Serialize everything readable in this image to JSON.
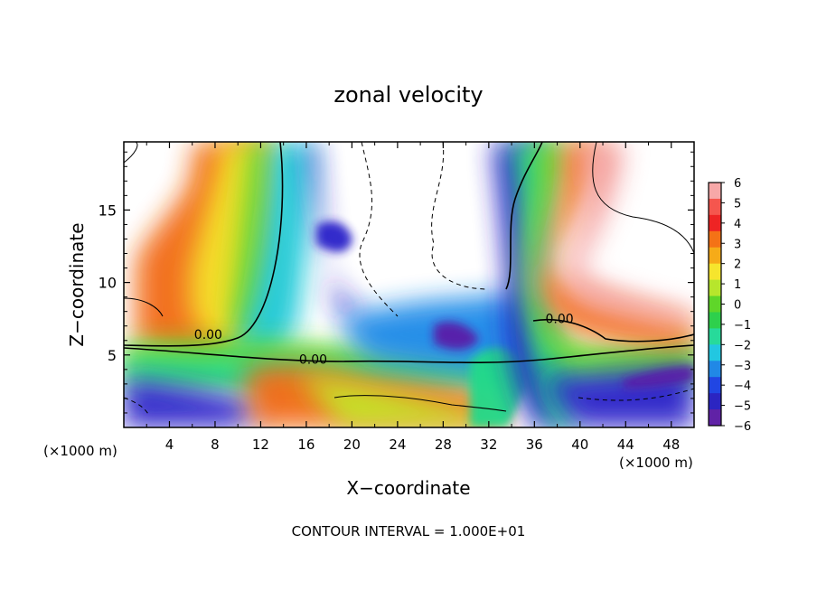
{
  "chart_data": {
    "type": "heatmap",
    "title": "zonal velocity",
    "xlabel": "X−coordinate",
    "ylabel": "Z−coordinate",
    "x_unit_left": "(×1000 m)",
    "x_unit_right": "(×1000 m)",
    "footer": "CONTOUR INTERVAL = 1.000E+01",
    "xlim": [
      0,
      50
    ],
    "ylim": [
      0,
      19.7
    ],
    "x_ticks": [
      4,
      8,
      12,
      16,
      20,
      24,
      28,
      32,
      36,
      40,
      44,
      48
    ],
    "x_tick_labels": [
      "4",
      "8",
      "12",
      "16",
      "20",
      "24",
      "28",
      "32",
      "36",
      "40",
      "44",
      "48"
    ],
    "y_ticks": [
      5,
      10,
      15
    ],
    "y_tick_labels": [
      "5",
      "10",
      "15"
    ],
    "colorbar": {
      "range": [
        -6,
        6
      ],
      "ticks": [
        6,
        5,
        4,
        3,
        2,
        1,
        0,
        -1,
        -2,
        -3,
        -4,
        -5,
        -6
      ],
      "tick_labels": [
        "6",
        "5",
        "4",
        "3",
        "2",
        "1",
        "0",
        "−1",
        "−2",
        "−3",
        "−4",
        "−5",
        "−6"
      ]
    },
    "contour_labels": [
      {
        "text": "0.00",
        "x": 7.4,
        "y": 6.1
      },
      {
        "text": "0.00",
        "x": 16.6,
        "y": 4.4
      },
      {
        "text": "0.00",
        "x": 38.2,
        "y": 7.2
      }
    ],
    "bands": [
      {
        "x": [
          [
            0.0,
            0.8
          ],
          [
            0.0,
            1.1
          ],
          [
            0.0,
            1.4
          ],
          [
            0.0,
            2.0
          ],
          [
            0.0,
            2.7
          ],
          [
            0.0,
            3.5
          ],
          [
            0.0,
            4.5
          ],
          [
            0.0,
            5.7
          ],
          [
            0.0,
            7.5
          ],
          [
            0.0,
            9.0
          ]
        ],
        "y": [
          0.0,
          0.4,
          0.8,
          1.2,
          1.6,
          2.0,
          2.4,
          2.8,
          3.2,
          3.6
        ]
      }
    ]
  }
}
